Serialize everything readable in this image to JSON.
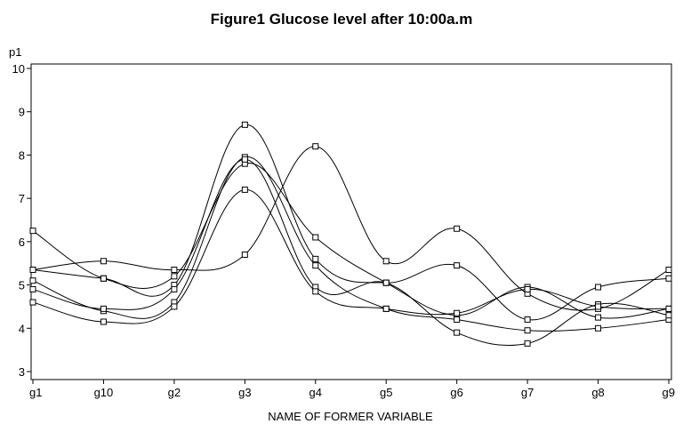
{
  "chart_data": {
    "type": "line",
    "title": "Figure1 Glucose level after 10:00a.m",
    "xlabel": "NAME OF FORMER VARIABLE",
    "ylabel": "p1",
    "categories": [
      "g1",
      "g10",
      "g2",
      "g3",
      "g4",
      "g5",
      "g6",
      "g7",
      "g8",
      "g9"
    ],
    "ylim": [
      3,
      10
    ],
    "yticks": [
      3,
      4,
      5,
      6,
      7,
      8,
      9,
      10
    ],
    "grid": false,
    "legend": "none",
    "series": [
      {
        "values": [
          6.25,
          5.15,
          5.2,
          7.8,
          6.1,
          5.05,
          4.3,
          4.95,
          4.25,
          4.45
        ]
      },
      {
        "values": [
          5.35,
          5.55,
          5.35,
          5.7,
          8.2,
          5.55,
          6.3,
          4.8,
          4.45,
          5.35
        ]
      },
      {
        "values": [
          5.35,
          5.15,
          5.0,
          8.7,
          5.6,
          5.05,
          5.45,
          4.2,
          4.95,
          5.15
        ]
      },
      {
        "values": [
          5.1,
          4.4,
          4.6,
          7.95,
          5.45,
          4.45,
          4.2,
          3.95,
          4.0,
          4.2
        ]
      },
      {
        "values": [
          4.9,
          4.45,
          4.9,
          7.9,
          4.95,
          5.05,
          3.9,
          3.65,
          4.55,
          4.3
        ]
      },
      {
        "values": [
          4.6,
          4.15,
          4.5,
          7.2,
          4.85,
          4.45,
          4.35,
          4.9,
          4.5,
          4.45
        ]
      }
    ]
  }
}
